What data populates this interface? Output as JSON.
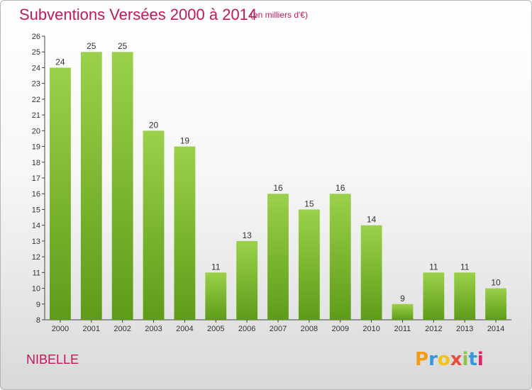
{
  "header": {
    "title": "Subventions Versées 2000 à 2014",
    "subtitle": "(en milliers d'€)"
  },
  "place_name": "NIBELLE",
  "logo_text": "Proxiti",
  "colors": {
    "title": "#c2185b",
    "bar_top": "#9bd14a",
    "bar_bottom": "#5e9c18",
    "logo_letters": [
      "#f39c12",
      "#3498db",
      "#f1c40f",
      "#e74c3c",
      "#8bc34a",
      "#3498db",
      "#e91e63"
    ]
  },
  "chart_data": {
    "type": "bar",
    "title": "Subventions Versées 2000 à 2014",
    "subtitle": "(en milliers d'€)",
    "categories": [
      "2000",
      "2001",
      "2002",
      "2003",
      "2004",
      "2005",
      "2006",
      "2007",
      "2008",
      "2009",
      "2010",
      "2011",
      "2012",
      "2013",
      "2014"
    ],
    "values": [
      24,
      25,
      25,
      20,
      19,
      11,
      13,
      16,
      15,
      16,
      14,
      9,
      11,
      11,
      10
    ],
    "ylim": [
      8,
      26
    ],
    "yticks": [
      8,
      9,
      10,
      11,
      12,
      13,
      14,
      15,
      16,
      17,
      18,
      19,
      20,
      21,
      22,
      23,
      24,
      25,
      26
    ],
    "grid": false,
    "data_labels": true,
    "legend": "none"
  }
}
